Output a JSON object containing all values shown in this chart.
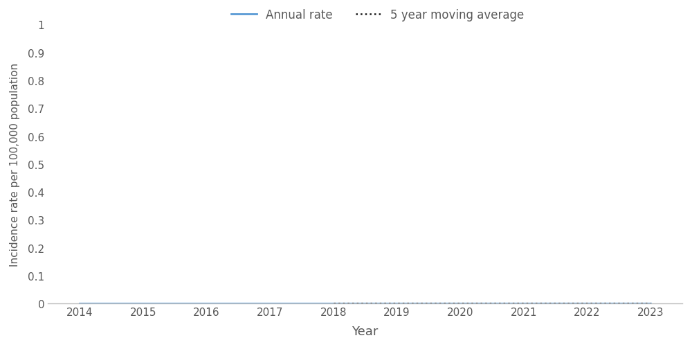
{
  "years": [
    2014,
    2015,
    2016,
    2017,
    2018,
    2019,
    2020,
    2021,
    2022,
    2023
  ],
  "annual_rate": [
    0.0,
    0.0,
    0.0,
    0.0,
    0.0,
    0.0,
    0.0,
    0.0,
    0.0,
    0.0
  ],
  "moving_avg_years": [
    2018,
    2019,
    2020,
    2021,
    2022,
    2023
  ],
  "moving_avg": [
    0.0,
    0.0,
    0.0,
    0.0,
    0.0,
    0.0
  ],
  "annual_rate_color": "#5B9BD5",
  "moving_avg_color": "#1a1a1a",
  "xlabel": "Year",
  "ylabel": "Incidence rate per 100,000 population",
  "ylim": [
    0,
    1
  ],
  "xlim": [
    2013.5,
    2023.5
  ],
  "yticks": [
    0,
    0.1,
    0.2,
    0.3,
    0.4,
    0.5,
    0.6,
    0.7,
    0.8,
    0.9,
    1
  ],
  "xticks": [
    2014,
    2015,
    2016,
    2017,
    2018,
    2019,
    2020,
    2021,
    2022,
    2023
  ],
  "legend_annual_label": "Annual rate",
  "legend_mavg_label": "5 year moving average",
  "background_color": "#ffffff",
  "annual_rate_linewidth": 2.0,
  "moving_avg_linewidth": 1.8,
  "font_color": "#595959",
  "axis_line_color": "#bfbfbf",
  "xlabel_fontsize": 13,
  "ylabel_fontsize": 11,
  "tick_fontsize": 11,
  "legend_fontsize": 12
}
